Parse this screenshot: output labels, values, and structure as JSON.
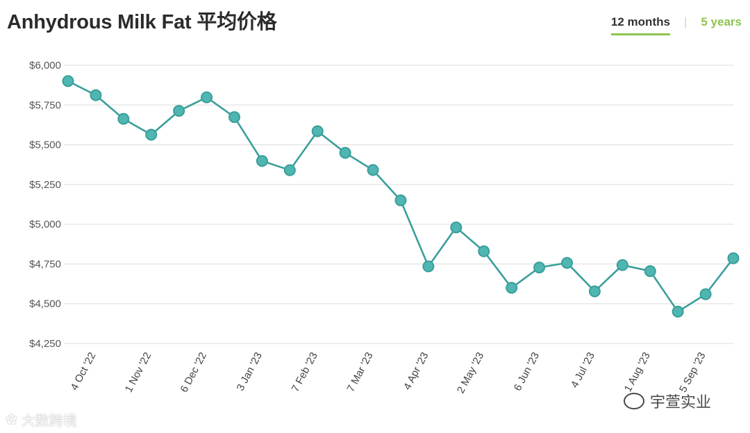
{
  "header": {
    "title": "Anhydrous Milk Fat 平均价格",
    "tabs": [
      {
        "label": "12 months",
        "active": true
      },
      {
        "label": "5 years",
        "active": false
      }
    ],
    "separator": "|"
  },
  "colors": {
    "line": "#3a9e9b",
    "marker_fill": "#4fb6b2",
    "grid": "#e3e3e3",
    "accent": "#8dc44e"
  },
  "chart_data": {
    "type": "line",
    "title": "Anhydrous Milk Fat 平均价格",
    "xlabel": "",
    "ylabel": "",
    "ylim": [
      4250,
      6000
    ],
    "yticks": [
      6000,
      5750,
      5500,
      5250,
      5000,
      4750,
      4500,
      4250
    ],
    "ytick_labels": [
      "$6,000",
      "$5,750",
      "$5,500",
      "$5,250",
      "$5,000",
      "$4,750",
      "$4,500",
      "$4,250"
    ],
    "grid": true,
    "x_tick_labels": [
      {
        "index": 1,
        "label": "4 Oct '22"
      },
      {
        "index": 3,
        "label": "1 Nov '22"
      },
      {
        "index": 5,
        "label": "6 Dec '22"
      },
      {
        "index": 7,
        "label": "3 Jan '23"
      },
      {
        "index": 9,
        "label": "7 Feb '23"
      },
      {
        "index": 11,
        "label": "7 Mar '23"
      },
      {
        "index": 13,
        "label": "4 Apr '23"
      },
      {
        "index": 15,
        "label": "2 May '23"
      },
      {
        "index": 17,
        "label": "6 Jun '23"
      },
      {
        "index": 19,
        "label": "4 Jul '23"
      },
      {
        "index": 21,
        "label": "1 Aug '23"
      },
      {
        "index": 23,
        "label": "5 Sep '23"
      }
    ],
    "series": [
      {
        "values": [
          5900,
          5812,
          5663,
          5563,
          5713,
          5798,
          5674,
          5398,
          5340,
          5585,
          5449,
          5341,
          5150,
          4735,
          4980,
          4830,
          4600,
          4728,
          4757,
          4578,
          4743,
          4705,
          4450,
          4560,
          4786
        ]
      }
    ]
  },
  "watermarks": {
    "left": "大数跨境",
    "right": "宇萱实业"
  }
}
